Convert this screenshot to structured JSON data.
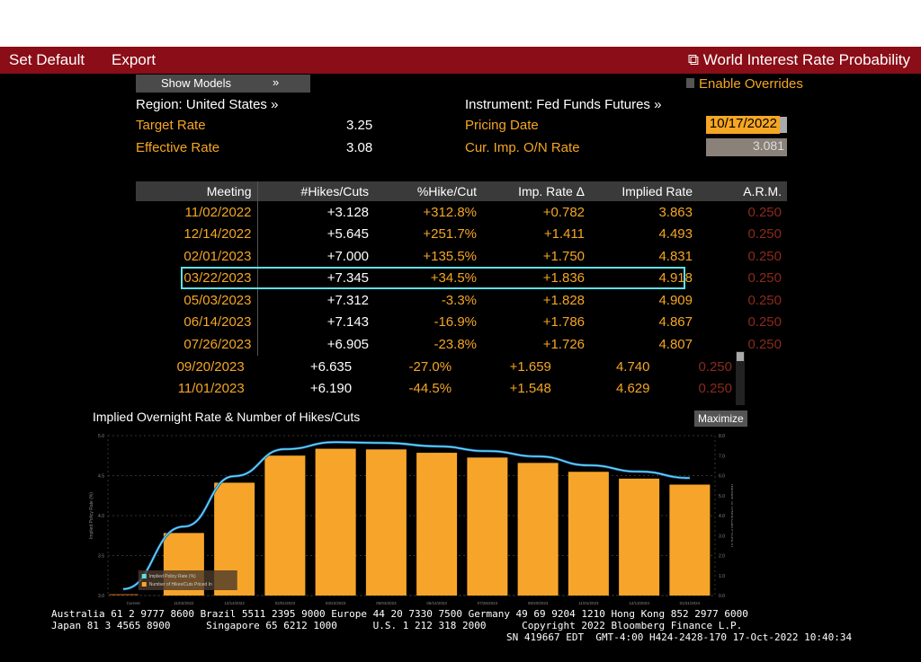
{
  "menu": {
    "set_default": "Set Default",
    "export": "Export",
    "title": "World Interest Rate Probability"
  },
  "controls": {
    "show_models": "Show Models",
    "show_models_chevron": "»",
    "enable_overrides": "Enable Overrides",
    "region": "Region: United States »",
    "instrument": "Instrument: Fed Funds Futures »",
    "target_rate_label": "Target Rate",
    "target_rate": "3.25",
    "effective_rate_label": "Effective Rate",
    "effective_rate": "3.08",
    "pricing_date_label": "Pricing Date",
    "pricing_date": "10/17/2022",
    "cur_imp_label": "Cur. Imp. O/N Rate",
    "cur_imp": "3.081"
  },
  "table": {
    "headers": [
      "Meeting",
      "#Hikes/Cuts",
      "%Hike/Cut",
      "Imp. Rate Δ",
      "Implied Rate",
      "A.R.M."
    ],
    "rows": [
      [
        "11/02/2022",
        "+3.128",
        "+312.8%",
        "+0.782",
        "3.863",
        "0.250"
      ],
      [
        "12/14/2022",
        "+5.645",
        "+251.7%",
        "+1.411",
        "4.493",
        "0.250"
      ],
      [
        "02/01/2023",
        "+7.000",
        "+135.5%",
        "+1.750",
        "4.831",
        "0.250"
      ],
      [
        "03/22/2023",
        "+7.345",
        "+34.5%",
        "+1.836",
        "4.918",
        "0.250"
      ],
      [
        "05/03/2023",
        "+7.312",
        "-3.3%",
        "+1.828",
        "4.909",
        "0.250"
      ],
      [
        "06/14/2023",
        "+7.143",
        "-16.9%",
        "+1.786",
        "4.867",
        "0.250"
      ],
      [
        "07/26/2023",
        "+6.905",
        "-23.8%",
        "+1.726",
        "4.807",
        "0.250"
      ]
    ],
    "rows2": [
      [
        "09/20/2023",
        "+6.635",
        "-27.0%",
        "+1.659",
        "4.740",
        "0.250"
      ],
      [
        "11/01/2023",
        "+6.190",
        "-44.5%",
        "+1.548",
        "4.629",
        "0.250"
      ]
    ]
  },
  "chart": {
    "title": "Implied Overnight Rate & Number of Hikes/Cuts",
    "maximize": "Maximize"
  },
  "chart_data": {
    "type": "bar+line",
    "categories": [
      "Current",
      "11/02/2022",
      "12/14/2022",
      "02/01/2023",
      "03/22/2023",
      "05/03/2023",
      "06/14/2023",
      "07/26/2023",
      "09/20/2023",
      "11/01/2023",
      "12/13/2023",
      "01/31/2024"
    ],
    "series": [
      {
        "name": "Number of Hikes/Cuts Priced In",
        "type": "bar",
        "axis": "right",
        "color": "#f7a52a",
        "values": [
          0,
          3.128,
          5.645,
          7.0,
          7.345,
          7.312,
          7.143,
          6.905,
          6.635,
          6.19,
          5.85,
          5.55
        ]
      },
      {
        "name": "Implied Policy Rate (%)",
        "type": "line",
        "axis": "left",
        "color": "#5ee0e8",
        "values": [
          3.081,
          3.863,
          4.493,
          4.831,
          4.918,
          4.909,
          4.867,
          4.807,
          4.74,
          4.629,
          4.55,
          4.47
        ]
      }
    ],
    "ylabel": "Implied Policy Rate (%)",
    "y2label": "Number of Hikes/Cuts Priced In",
    "ylim": [
      3.0,
      5.0
    ],
    "yticks": [
      "3.0",
      "3.5",
      "4.0",
      "4.5",
      "5.0"
    ],
    "y2lim": [
      0,
      8
    ],
    "y2ticks": [
      "0.0",
      "1.0",
      "2.0",
      "3.0",
      "4.0",
      "5.0",
      "6.0",
      "7.0",
      "8.0"
    ],
    "grid": true,
    "legend": "bottom-left"
  },
  "footer": {
    "line1": "Australia 61 2 9777 8600 Brazil 5511 2395 9000 Europe 44 20 7330 7500 Germany 49 69 9204 1210 Hong Kong 852 2977 6000",
    "line2": "Japan 81 3 4565 8900      Singapore 65 6212 1000      U.S. 1 212 318 2000      Copyright 2022 Bloomberg Finance L.P.",
    "line3": "SN 419667 EDT  GMT-4:00 H424-2428-170 17-Oct-2022 10:40:34"
  }
}
